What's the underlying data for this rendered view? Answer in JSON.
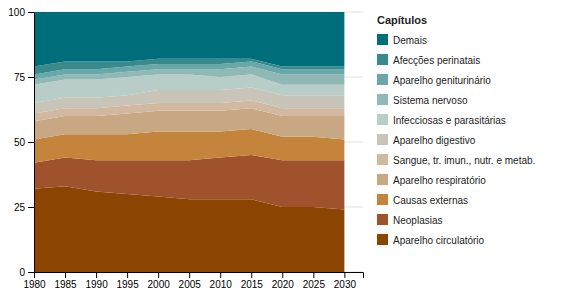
{
  "chart_data": {
    "type": "area",
    "stacked": true,
    "legend_title": "Capítulos",
    "legend": "right",
    "grid": true,
    "x": [
      1980,
      1985,
      1990,
      1995,
      2000,
      2005,
      2010,
      2015,
      2020,
      2025,
      2030
    ],
    "series": [
      {
        "name": "Aparelho circulatório",
        "color": "#8B4500",
        "values": [
          32,
          33,
          31,
          30,
          29,
          28,
          28,
          28,
          25,
          25,
          24
        ]
      },
      {
        "name": "Neoplasias",
        "color": "#A0522D",
        "values": [
          10,
          11,
          12,
          13,
          14,
          15,
          16,
          17,
          18,
          18,
          19
        ]
      },
      {
        "name": "Causas externas",
        "color": "#C4843C",
        "values": [
          9,
          9,
          10,
          10,
          11,
          11,
          10,
          10,
          9,
          9,
          8
        ]
      },
      {
        "name": "Aparelho respiratório",
        "color": "#C8A882",
        "values": [
          7,
          7,
          7,
          8,
          8,
          8,
          8,
          8,
          8,
          8,
          9
        ]
      },
      {
        "name": "Sangue, tr. imun., nutr. e metab.",
        "color": "#D2B8A0",
        "values": [
          3,
          3,
          3,
          3,
          3,
          3,
          3,
          3,
          3,
          3,
          3
        ]
      },
      {
        "name": "Aparelho digestivo",
        "color": "#C8C4B8",
        "values": [
          4,
          4,
          4,
          4,
          5,
          5,
          5,
          5,
          5,
          5,
          5
        ]
      },
      {
        "name": "Infecciosas e parasitárias",
        "color": "#B8CCC8",
        "values": [
          7,
          7,
          7,
          7,
          6,
          6,
          5,
          5,
          4,
          4,
          4
        ]
      },
      {
        "name": "Sistema nervoso",
        "color": "#90B8B4",
        "values": [
          2,
          2,
          2,
          2,
          2,
          2,
          3,
          3,
          4,
          4,
          4
        ]
      },
      {
        "name": "Aparelho geniturinário",
        "color": "#68A8A8",
        "values": [
          2,
          2,
          2,
          2,
          2,
          2,
          2,
          2,
          2,
          2,
          2
        ]
      },
      {
        "name": "Afecções perinatais",
        "color": "#3A8A8C",
        "values": [
          3,
          3,
          3,
          2,
          2,
          2,
          2,
          1,
          1,
          1,
          1
        ]
      },
      {
        "name": "Demais",
        "color": "#006E7A",
        "values": [
          21,
          19,
          19,
          19,
          18,
          18,
          18,
          18,
          21,
          21,
          21
        ]
      }
    ],
    "xlim": [
      1980,
      2033
    ],
    "ylim": [
      0,
      100
    ],
    "xticks": [
      1980,
      1985,
      1990,
      1995,
      2000,
      2005,
      2010,
      2015,
      2020,
      2025,
      2030
    ],
    "yticks": [
      0,
      25,
      50,
      75,
      100
    ]
  }
}
